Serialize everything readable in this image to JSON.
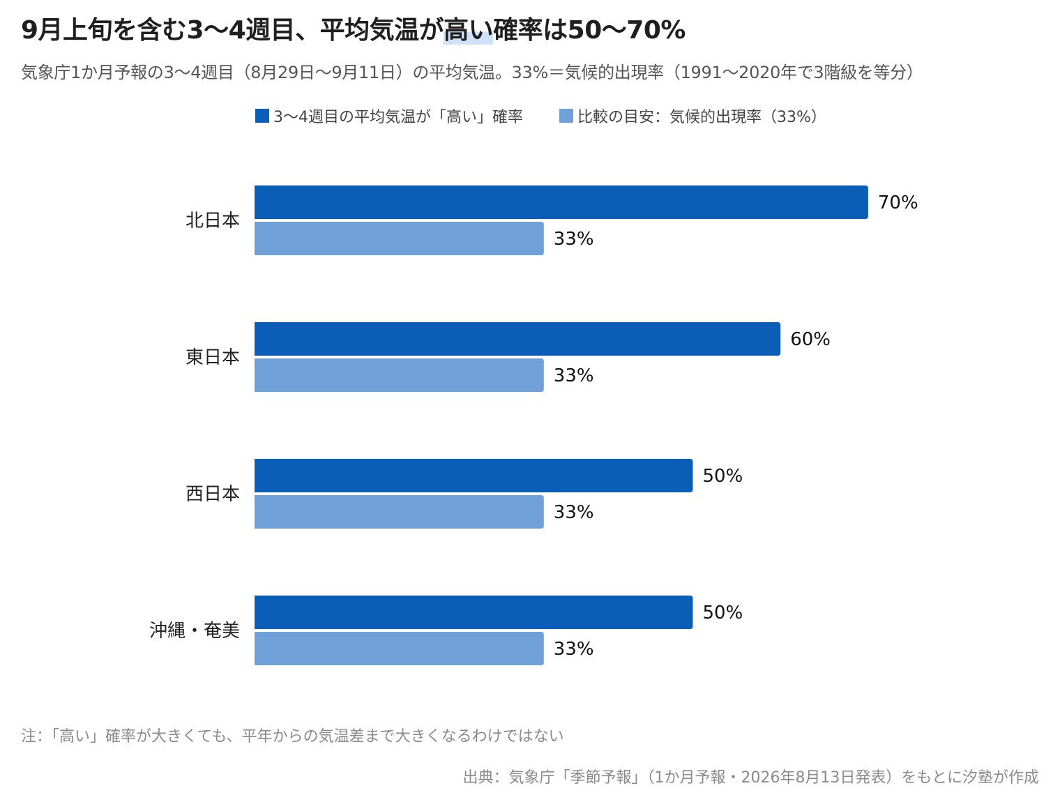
{
  "header": {
    "title_before": "9月上旬を含む3〜4週目、平均気温が",
    "title_highlight": "高い",
    "title_after": "確率は50〜70%",
    "subtitle": "気象庁1か月予報の3〜4週目（8月29日〜9月11日）の平均気温。33%＝気候的出現率（1991〜2020年で3階級を等分）"
  },
  "colors": {
    "primary": "#0b5eb8",
    "baseline": "#6fa0d8",
    "highlight": "#cfe2f7"
  },
  "chart_data": {
    "type": "bar",
    "orientation": "horizontal",
    "categories": [
      "北日本",
      "東日本",
      "西日本",
      "沖縄・奄美"
    ],
    "series": [
      {
        "name": "3〜4週目の平均気温が「高い」確率",
        "values": [
          70,
          60,
          50,
          50
        ],
        "labels": [
          "70%",
          "60%",
          "50%",
          "50%"
        ]
      },
      {
        "name": "比較の目安：気候的出現率（33%）",
        "values": [
          33,
          33,
          33,
          33
        ],
        "labels": [
          "33%",
          "33%",
          "33%",
          "33%"
        ]
      }
    ],
    "xlim": [
      0,
      100
    ],
    "unit": "%",
    "grid": false,
    "legend_position": "top"
  },
  "footer": {
    "note": "注：「高い」確率が大きくても、平年からの気温差まで大きくなるわけではない",
    "source": "出典：気象庁「季節予報」（1か月予報・2026年8月13日発表）をもとに汐塾が作成"
  }
}
